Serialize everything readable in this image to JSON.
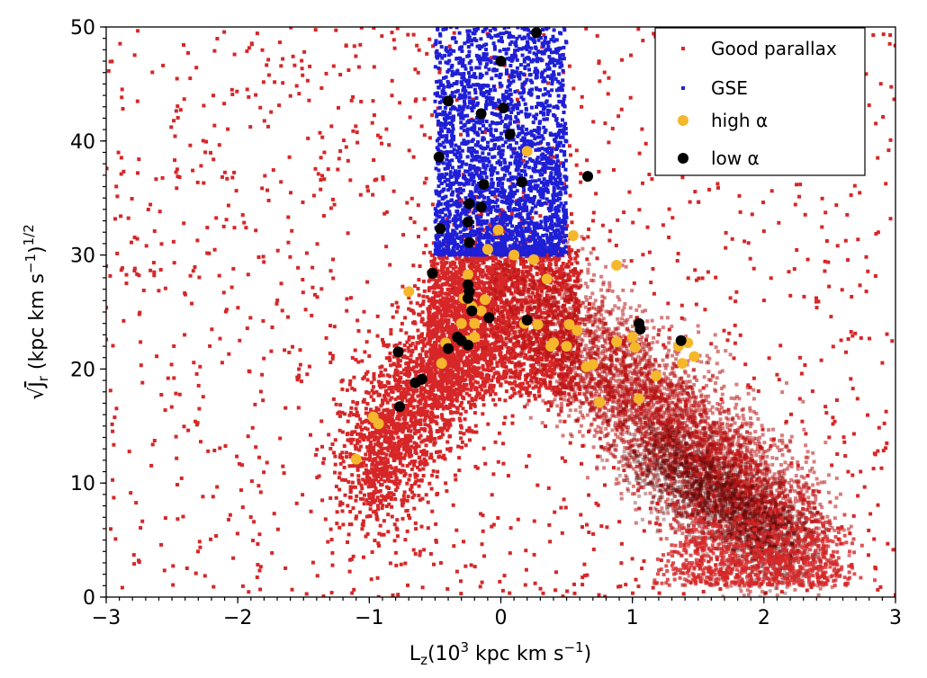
{
  "chart_data": {
    "type": "scatter",
    "xlabel": "L",
    "xlabel_sub": "z",
    "xlabel_unit_pre": "(10",
    "xlabel_unit_exp": "3",
    "xlabel_unit_post": " kpc km s",
    "xlabel_unit_exp2": "−1",
    "xlabel_unit_close": ")",
    "ylabel_root": "√",
    "ylabel_main": "J",
    "ylabel_sub": "r",
    "ylabel_unit_pre": " (kpc km s",
    "ylabel_unit_exp": "−1",
    "ylabel_unit_close": ")",
    "ylabel_unit_exp2": "1/2",
    "xlim": [
      -3,
      3
    ],
    "ylim": [
      0,
      50
    ],
    "xticks": [
      -3,
      -2,
      -1,
      0,
      1,
      2,
      3
    ],
    "xtick_labels": [
      "−3",
      "−2",
      "−1",
      "0",
      "1",
      "2",
      "3"
    ],
    "yticks": [
      0,
      10,
      20,
      30,
      40,
      50
    ],
    "ytick_labels": [
      "0",
      "10",
      "20",
      "30",
      "40",
      "50"
    ],
    "legend_position": "top-right",
    "series": [
      {
        "name": "Good parallax",
        "color": "#d62728",
        "distribution": "dense red background scatter forming an inverted-V: left arm from L_z≈−1 to 0 rising to J_r^{1/2}≈30, right arm descending from L_z≈0 to L_z≈2.2 (densest near L_z≈2, J_r^{1/2}≈5), sparse points across whole panel"
      },
      {
        "name": "GSE",
        "color": "#1f1fd6",
        "distribution": "points uniformly filling box −0.5 ≤ L_z ≤ 0.5, 30 ≤ J_r^{1/2} ≤ 50"
      },
      {
        "name": "high α",
        "color": "#f5b72c",
        "points": [
          [
            -1.1,
            12.1
          ],
          [
            -0.97,
            15.8
          ],
          [
            -0.93,
            15.2
          ],
          [
            -0.7,
            26.8
          ],
          [
            -0.45,
            20.5
          ],
          [
            -0.42,
            22.3
          ],
          [
            -0.3,
            24.0
          ],
          [
            -0.28,
            26.2
          ],
          [
            -0.25,
            28.3
          ],
          [
            -0.22,
            25.5
          ],
          [
            -0.2,
            24.0
          ],
          [
            -0.15,
            25.1
          ],
          [
            -0.12,
            26.1
          ],
          [
            -0.25,
            22.5
          ],
          [
            -0.2,
            22.8
          ],
          [
            -0.02,
            32.2
          ],
          [
            -0.1,
            30.5
          ],
          [
            0.2,
            39.1
          ],
          [
            0.25,
            29.6
          ],
          [
            0.18,
            24.0
          ],
          [
            0.28,
            23.9
          ],
          [
            0.35,
            27.9
          ],
          [
            0.4,
            22.3
          ],
          [
            0.38,
            22.0
          ],
          [
            0.5,
            22.0
          ],
          [
            0.52,
            23.9
          ],
          [
            0.58,
            23.4
          ],
          [
            0.55,
            31.7
          ],
          [
            0.65,
            20.2
          ],
          [
            0.7,
            20.4
          ],
          [
            0.75,
            17.1
          ],
          [
            0.88,
            29.1
          ],
          [
            0.88,
            22.4
          ],
          [
            1.0,
            22.8
          ],
          [
            1.02,
            21.9
          ],
          [
            1.05,
            17.4
          ],
          [
            1.18,
            19.4
          ],
          [
            1.35,
            22.0
          ],
          [
            1.38,
            20.5
          ],
          [
            1.42,
            22.3
          ],
          [
            1.47,
            21.1
          ],
          [
            0.1,
            30.0
          ]
        ]
      },
      {
        "name": "low α",
        "color": "#000000",
        "points": [
          [
            0.27,
            49.5
          ],
          [
            0.0,
            47.0
          ],
          [
            -0.4,
            43.5
          ],
          [
            -0.15,
            42.4
          ],
          [
            0.02,
            42.9
          ],
          [
            0.07,
            40.6
          ],
          [
            -0.47,
            38.6
          ],
          [
            0.66,
            36.9
          ],
          [
            -0.13,
            36.2
          ],
          [
            0.16,
            36.4
          ],
          [
            -0.24,
            34.5
          ],
          [
            -0.15,
            34.2
          ],
          [
            -0.25,
            32.9
          ],
          [
            -0.46,
            32.3
          ],
          [
            -0.24,
            31.1
          ],
          [
            -0.52,
            28.4
          ],
          [
            -0.25,
            27.4
          ],
          [
            -0.24,
            26.8
          ],
          [
            -0.25,
            26.2
          ],
          [
            -0.22,
            25.1
          ],
          [
            -0.09,
            24.5
          ],
          [
            0.2,
            24.3
          ],
          [
            -0.33,
            22.8
          ],
          [
            -0.3,
            22.5
          ],
          [
            -0.25,
            22.1
          ],
          [
            -0.4,
            21.8
          ],
          [
            -0.78,
            21.5
          ],
          [
            -0.65,
            18.8
          ],
          [
            -0.6,
            19.1
          ],
          [
            -0.77,
            16.7
          ],
          [
            1.05,
            24.0
          ],
          [
            1.06,
            23.5
          ],
          [
            1.37,
            22.5
          ]
        ]
      }
    ]
  }
}
